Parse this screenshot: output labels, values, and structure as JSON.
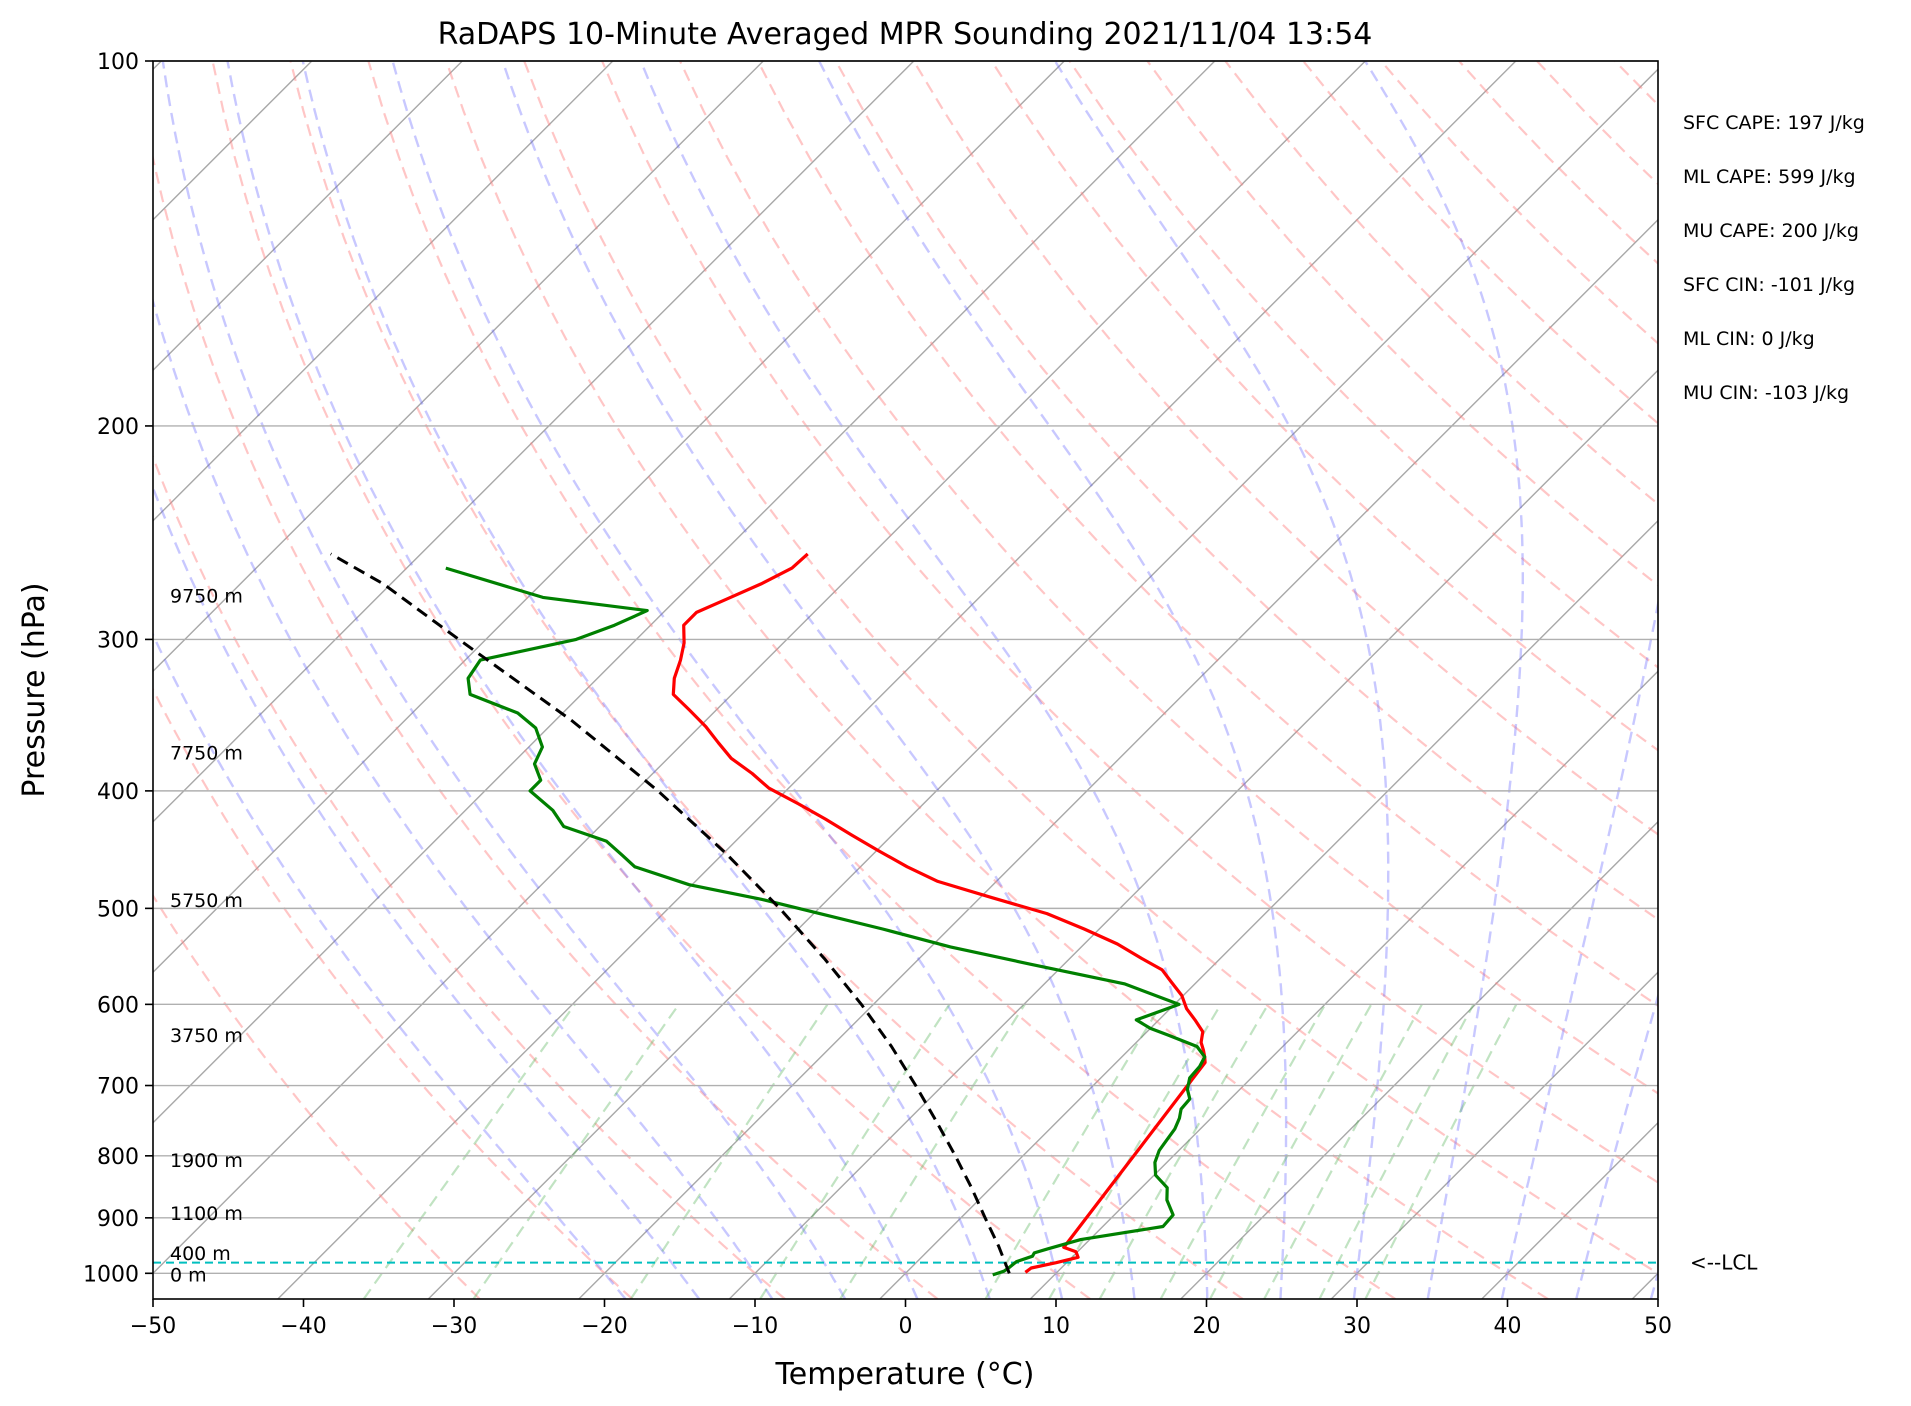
{
  "chart_data": {
    "type": "line",
    "title": "RaDAPS 10-Minute Averaged MPR Sounding 2021/11/04 13:54",
    "xlabel": "Temperature (°C)",
    "ylabel": "Pressure (hPa)",
    "xlim": [
      -50,
      50
    ],
    "ylim": [
      1050,
      100
    ],
    "y_scale": "log",
    "skew": "skew-T log-P",
    "grid": true,
    "x_ticks": [
      "−50",
      "−40",
      "−30",
      "−20",
      "−10",
      "0",
      "10",
      "20",
      "30",
      "40",
      "50"
    ],
    "y_ticks": [
      "100",
      "200",
      "300",
      "400",
      "500",
      "600",
      "700",
      "800",
      "900",
      "1000"
    ],
    "height_labels": [
      {
        "text": "9750 m",
        "p": 276
      },
      {
        "text": "7750 m",
        "p": 372
      },
      {
        "text": "5750 m",
        "p": 492
      },
      {
        "text": "3750 m",
        "p": 636
      },
      {
        "text": "1900 m",
        "p": 806
      },
      {
        "text": "1100 m",
        "p": 892
      },
      {
        "text": "400 m",
        "p": 962
      },
      {
        "text": "0 m",
        "p": 1002
      }
    ],
    "lcl": {
      "pressure": 980,
      "label": "<--LCL"
    },
    "indices": [
      "SFC CAPE: 197 J/kg",
      "ML CAPE: 599 J/kg",
      "MU CAPE: 200 J/kg",
      "SFC CIN: -101 J/kg",
      "ML CIN: 0 J/kg",
      "MU CIN: -103 J/kg"
    ],
    "series": [
      {
        "color": "#ff0000",
        "points": [
          [
            -54.3,
            255
          ],
          [
            -54.4,
            262
          ],
          [
            -55.4,
            270
          ],
          [
            -56.7,
            278
          ],
          [
            -57.8,
            285
          ],
          [
            -57.8,
            292
          ],
          [
            -56.6,
            302
          ],
          [
            -55.7,
            312
          ],
          [
            -54.9,
            323
          ],
          [
            -53.9,
            333
          ],
          [
            -51.8,
            343
          ],
          [
            -49.6,
            354
          ],
          [
            -47.7,
            365
          ],
          [
            -45.8,
            376
          ],
          [
            -43.4,
            387
          ],
          [
            -41.3,
            398
          ],
          [
            -38.3,
            410
          ],
          [
            -35.5,
            422
          ],
          [
            -32.7,
            435
          ],
          [
            -29.9,
            448
          ],
          [
            -26.9,
            462
          ],
          [
            -23.9,
            475
          ],
          [
            -19.2,
            490
          ],
          [
            -14.5,
            505
          ],
          [
            -11.0,
            520
          ],
          [
            -7.8,
            535
          ],
          [
            -5.2,
            550
          ],
          [
            -3.1,
            562
          ],
          [
            -1.7,
            575
          ],
          [
            -0.1,
            590
          ],
          [
            1.1,
            605
          ],
          [
            2.4,
            618
          ],
          [
            3.7,
            632
          ],
          [
            4.3,
            645
          ],
          [
            5.0,
            655
          ],
          [
            5.5,
            663
          ],
          [
            5.9,
            670
          ],
          [
            8.8,
            952
          ],
          [
            9.9,
            960
          ],
          [
            10.4,
            970
          ],
          [
            9.3,
            980
          ],
          [
            8.0,
            990
          ],
          [
            7.9,
            998
          ]
        ]
      },
      {
        "color": "#008000",
        "points": [
          [
            -77.4,
            262
          ],
          [
            -69.0,
            277
          ],
          [
            -61.2,
            284
          ],
          [
            -62.4,
            292
          ],
          [
            -64.0,
            300
          ],
          [
            -69.0,
            312
          ],
          [
            -68.6,
            323
          ],
          [
            -67.4,
            333
          ],
          [
            -63.0,
            345
          ],
          [
            -60.8,
            355
          ],
          [
            -59.1,
            368
          ],
          [
            -58.5,
            380
          ],
          [
            -57.0,
            392
          ],
          [
            -57.0,
            400
          ],
          [
            -54.2,
            415
          ],
          [
            -52.4,
            428
          ],
          [
            -48.6,
            440
          ],
          [
            -46.6,
            452
          ],
          [
            -45.0,
            462
          ],
          [
            -40.2,
            478
          ],
          [
            -34.2,
            492
          ],
          [
            -29.6,
            505
          ],
          [
            -24.4,
            520
          ],
          [
            -18.7,
            538
          ],
          [
            -12.2,
            556
          ],
          [
            -4.7,
            577
          ],
          [
            0.3,
            600
          ],
          [
            -1.5,
            618
          ],
          [
            0.0,
            628
          ],
          [
            1.6,
            636
          ],
          [
            4.3,
            650
          ],
          [
            5.5,
            663
          ],
          [
            5.8,
            675
          ],
          [
            5.9,
            690
          ],
          [
            6.5,
            705
          ],
          [
            7.3,
            718
          ],
          [
            7.4,
            732
          ],
          [
            7.9,
            745
          ],
          [
            8.3,
            760
          ],
          [
            8.5,
            776
          ],
          [
            8.7,
            792
          ],
          [
            9.2,
            810
          ],
          [
            10.1,
            830
          ],
          [
            11.7,
            850
          ],
          [
            12.5,
            870
          ],
          [
            13.9,
            895
          ],
          [
            14.0,
            915
          ],
          [
            9.4,
            938
          ],
          [
            7.8,
            955
          ],
          [
            7.2,
            962
          ],
          [
            7.3,
            968
          ],
          [
            6.6,
            978
          ],
          [
            6.5,
            990
          ],
          [
            6.4,
            996
          ],
          [
            5.9,
            1003
          ]
        ]
      },
      {
        "color": "#000000",
        "style": "dashed",
        "points": [
          [
            6.9,
            1000
          ],
          [
            4.4,
            950
          ],
          [
            1.6,
            900
          ],
          [
            -1.3,
            850
          ],
          [
            -4.5,
            800
          ],
          [
            -8.0,
            750
          ],
          [
            -11.8,
            700
          ],
          [
            -16.0,
            650
          ],
          [
            -20.8,
            600
          ],
          [
            -26.3,
            550
          ],
          [
            -32.6,
            500
          ],
          [
            -39.9,
            450
          ],
          [
            -48.5,
            400
          ],
          [
            -58.9,
            350
          ],
          [
            -71.8,
            300
          ],
          [
            -80.5,
            270
          ],
          [
            -86.0,
            255
          ]
        ]
      }
    ]
  }
}
